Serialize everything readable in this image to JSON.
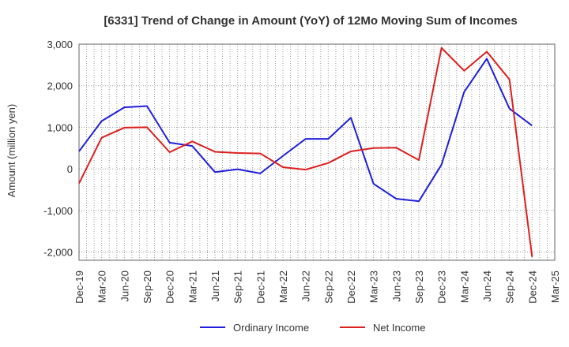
{
  "chart_data": {
    "type": "line",
    "title": "[6331]  Trend of Change in Amount (YoY) of 12Mo Moving Sum of Incomes",
    "xlabel": "",
    "ylabel": "Amount (million yen)",
    "ylim": [
      -2200,
      3000
    ],
    "yticks": [
      3000,
      2000,
      1000,
      0,
      -1000,
      -2000
    ],
    "ytick_labels": [
      "3,000",
      "2,000",
      "1,000",
      "0",
      "-1,000",
      "-2,000"
    ],
    "grid": true,
    "legend_position": "bottom-center",
    "categories": [
      "Dec-19",
      "Mar-20",
      "Jun-20",
      "Sep-20",
      "Dec-20",
      "Mar-21",
      "Jun-21",
      "Sep-21",
      "Dec-21",
      "Mar-22",
      "Jun-22",
      "Sep-22",
      "Dec-22",
      "Mar-23",
      "Jun-23",
      "Sep-23",
      "Dec-23",
      "Mar-24",
      "Jun-24",
      "Sep-24",
      "Dec-24",
      "Mar-25"
    ],
    "series": [
      {
        "name": "Ordinary Income",
        "color": "#1f1fdd",
        "values": [
          420,
          1150,
          1480,
          1510,
          630,
          550,
          -80,
          -10,
          -110,
          310,
          720,
          720,
          1230,
          -360,
          -720,
          -780,
          100,
          1850,
          2650,
          1450,
          1040,
          null
        ]
      },
      {
        "name": "Net Income",
        "color": "#dd1f1f",
        "values": [
          -350,
          750,
          990,
          1000,
          400,
          660,
          410,
          380,
          370,
          40,
          -20,
          140,
          420,
          500,
          510,
          210,
          2910,
          2360,
          2820,
          2150,
          -2120,
          null
        ]
      }
    ]
  }
}
